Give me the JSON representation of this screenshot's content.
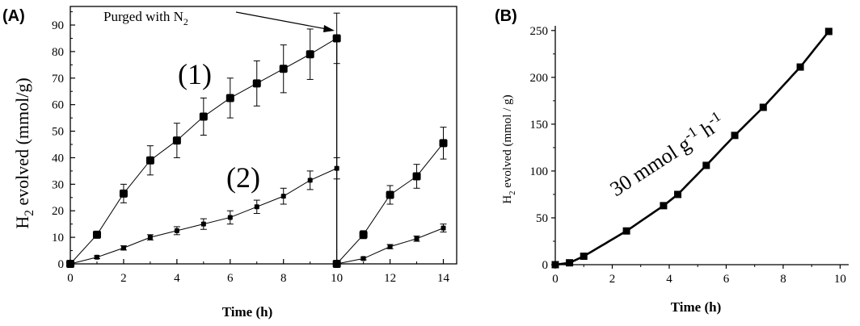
{
  "panels": {
    "a": "(A)",
    "b": "(B)"
  },
  "chart_data": [
    {
      "type": "line",
      "panel": "(A)",
      "xlabel": "Time (h)",
      "ylabel": {
        "prefix": "H",
        "sub": "2",
        "suffix": " evolved (mmol/g)"
      },
      "xlim": [
        0,
        14.5
      ],
      "ylim": [
        0,
        97
      ],
      "xticks": [
        0,
        2,
        4,
        6,
        8,
        10,
        12,
        14
      ],
      "yticks": [
        0,
        10,
        20,
        30,
        40,
        50,
        60,
        70,
        80,
        90
      ],
      "annotation": {
        "prefix": "Purged with N",
        "sub": "2",
        "points_to_x": 10,
        "points_to_y": 85
      },
      "purge_line_x": 10,
      "series": [
        {
          "name": "(1)",
          "segments": [
            {
              "x": [
                0,
                1,
                2,
                3,
                4,
                5,
                6,
                7,
                8,
                9,
                10
              ],
              "y": [
                0,
                11,
                26.5,
                39,
                46.5,
                55.5,
                62.5,
                68,
                73.5,
                79,
                85
              ],
              "err": [
                0,
                1,
                3.5,
                5.5,
                6.5,
                7,
                7.5,
                8.5,
                9,
                9.5,
                9.5
              ]
            },
            {
              "x": [
                10,
                11,
                12,
                13,
                14
              ],
              "y": [
                0,
                11,
                26,
                33,
                45.5
              ],
              "err": [
                0,
                1.5,
                3.5,
                4.5,
                6
              ]
            }
          ]
        },
        {
          "name": "(2)",
          "segments": [
            {
              "x": [
                0,
                1,
                2,
                3,
                4,
                5,
                6,
                7,
                8,
                9,
                10
              ],
              "y": [
                0,
                2.5,
                6,
                10,
                12.5,
                15,
                17.5,
                21.5,
                25.5,
                31.5,
                36
              ],
              "err": [
                0,
                0.5,
                0.8,
                1,
                1.5,
                2,
                2.5,
                2.5,
                3,
                3.5,
                4
              ]
            },
            {
              "x": [
                10,
                11,
                12,
                13,
                14
              ],
              "y": [
                0,
                2,
                6.5,
                9.5,
                13.5
              ],
              "err": [
                0,
                0.5,
                0.8,
                1,
                1.5
              ]
            }
          ]
        }
      ]
    },
    {
      "type": "line",
      "panel": "(B)",
      "xlabel": "Time (h)",
      "ylabel": {
        "prefix": "H",
        "sub": "2",
        "suffix": " evolved (mmol / g)"
      },
      "xlim": [
        0,
        10.3
      ],
      "ylim": [
        0,
        255
      ],
      "xticks": [
        0,
        2,
        4,
        6,
        8,
        10
      ],
      "yticks": [
        0,
        50,
        100,
        150,
        200,
        250
      ],
      "rate_label": {
        "value": "30 mmol g",
        "exp1": "-1",
        "unit": " h",
        "exp2": "-1"
      },
      "series": [
        {
          "name": "H2 evolved",
          "x": [
            0,
            0.5,
            1,
            2.5,
            3.8,
            4.3,
            5.3,
            6.3,
            7.3,
            8.6,
            9.6
          ],
          "y": [
            0,
            2,
            9,
            36,
            63,
            75,
            106,
            138,
            168,
            211,
            249
          ]
        }
      ]
    }
  ]
}
